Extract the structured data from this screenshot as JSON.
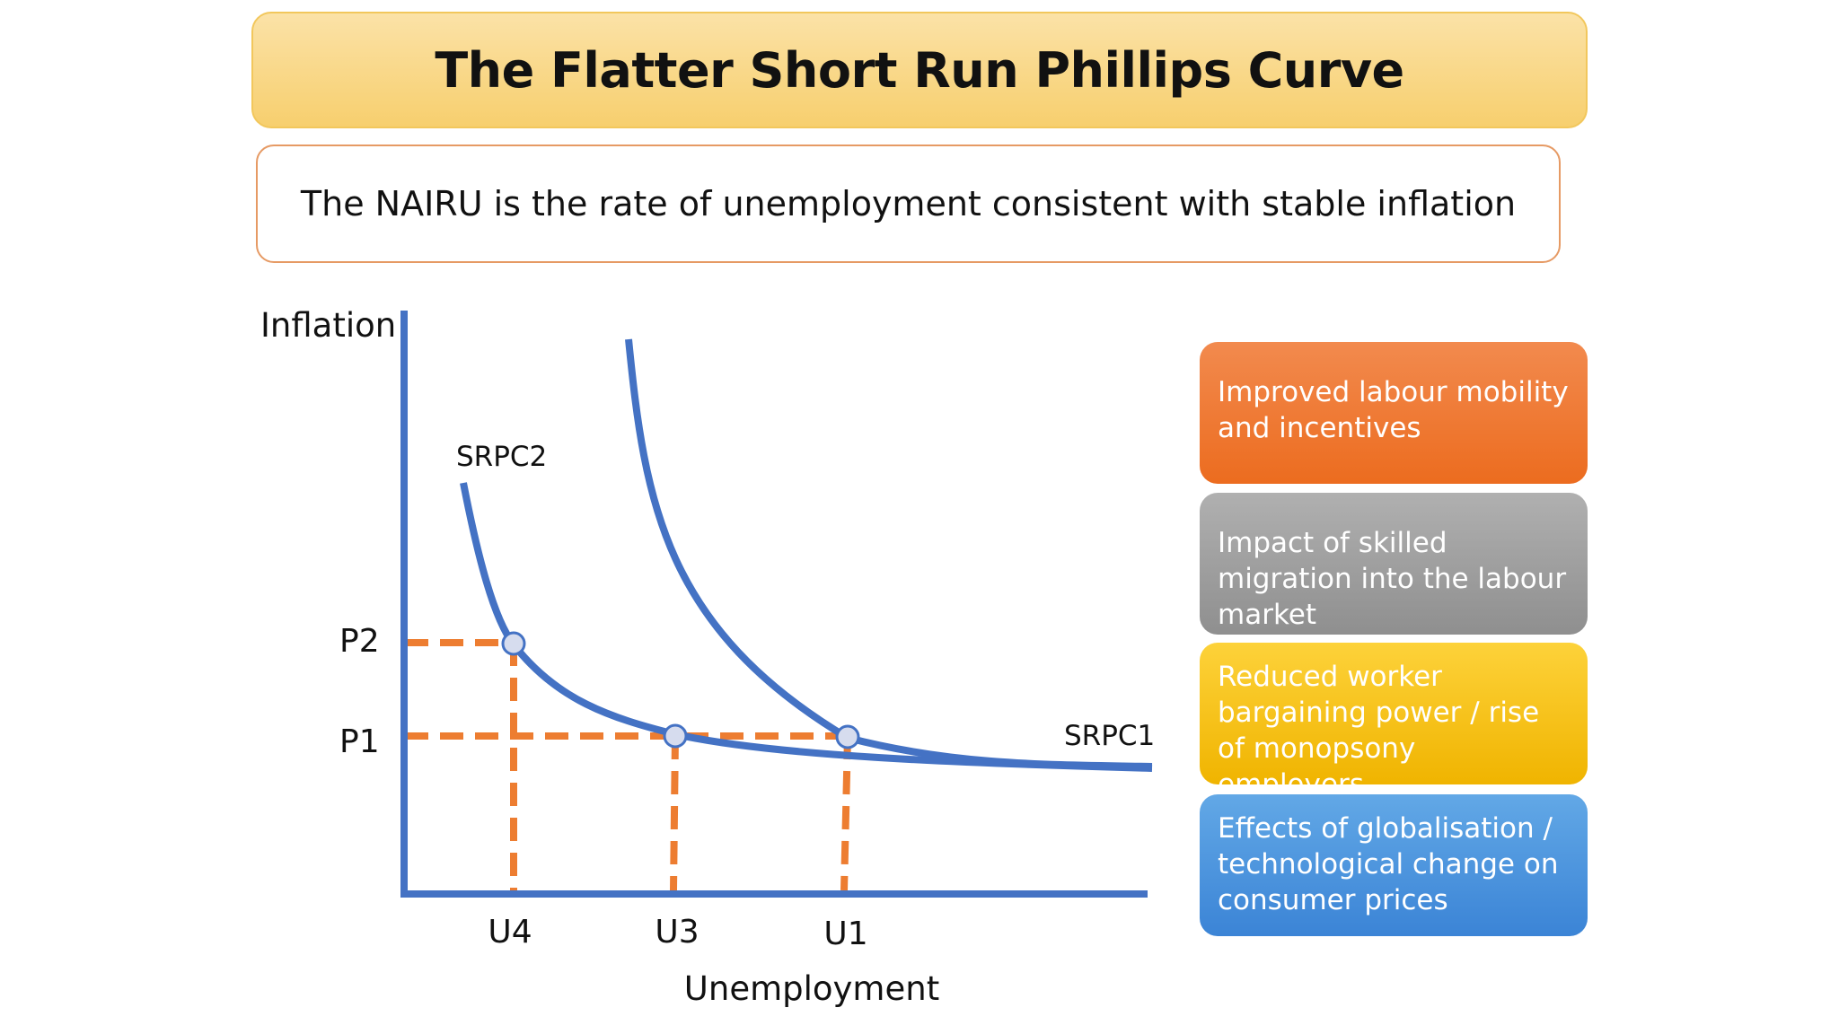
{
  "title": "The Flatter Short Run Phillips Curve",
  "definition": "The NAIRU is the rate of unemployment consistent with stable inflation",
  "diagram": {
    "y_axis_label": "Inflation",
    "x_axis_label": "Unemployment",
    "curves": {
      "srpc1": "SRPC1",
      "srpc2": "SRPC2"
    },
    "price_levels": {
      "p2": "P2",
      "p1": "P1"
    },
    "unemployment_levels": {
      "u4": "U4",
      "u3": "U3",
      "u1": "U1"
    },
    "colors": {
      "curve": "#4472c4",
      "guide_lines": "#ed7d31",
      "point_fill": "#d6dcee"
    }
  },
  "factors": [
    {
      "text": "Improved labour mobility and incentives",
      "color": "#ed7d31"
    },
    {
      "text": "Impact of skilled migration into the labour market",
      "color": "#a5a5a5"
    },
    {
      "text": "Reduced worker bargaining power / rise of monopsony employers",
      "color": "#ffc000"
    },
    {
      "text": "Effects of globalisation / technological change on consumer prices",
      "color": "#5b9bd5"
    }
  ]
}
